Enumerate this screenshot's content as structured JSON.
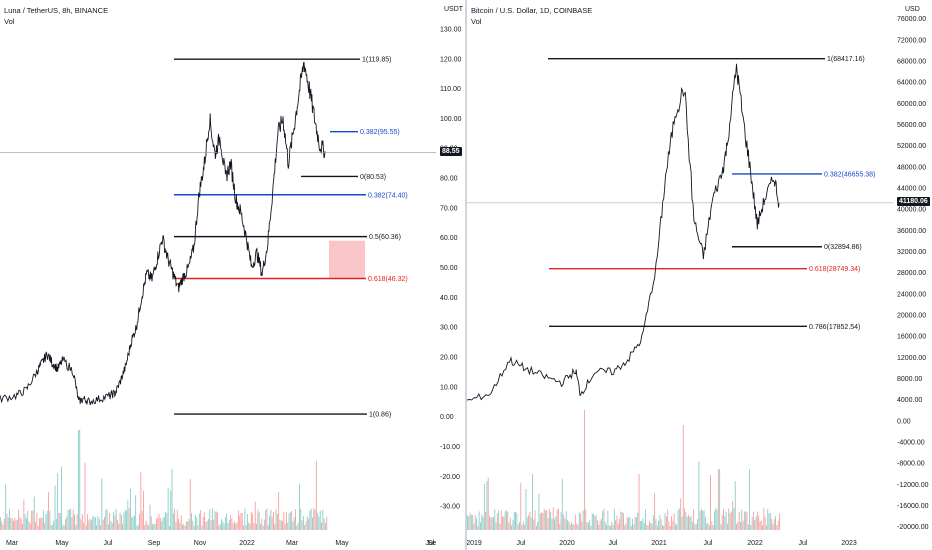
{
  "chart_data": [
    {
      "type": "line",
      "title": "Luna / TetherUS, 8h, BINANCE",
      "volume_label": "Vol",
      "y_unit": "USDT",
      "current_price": "88.55",
      "x_ticks": [
        "Mar",
        "May",
        "Jul",
        "Sep",
        "Nov",
        "2022",
        "Mar",
        "May",
        "Jul",
        "Se"
      ],
      "y_ticks": [
        "130.00",
        "120.00",
        "110.00",
        "100.00",
        "90.00",
        "80.00",
        "70.00",
        "60.00",
        "50.00",
        "40.00",
        "30.00",
        "20.00",
        "10.00",
        "0.00",
        "-10.00",
        "-20.00",
        "-30.00"
      ],
      "ylim": [
        -36,
        133
      ],
      "price_path": [
        [
          0,
          6.0
        ],
        [
          3,
          7.0
        ],
        [
          5,
          9.0
        ],
        [
          7,
          15.0
        ],
        [
          8,
          18.0
        ],
        [
          9,
          21.0
        ],
        [
          10,
          18.0
        ],
        [
          11,
          16.0
        ],
        [
          12,
          19.0
        ],
        [
          14,
          15.0
        ],
        [
          15,
          5.0
        ],
        [
          16,
          6.0
        ],
        [
          17,
          5.0
        ],
        [
          19,
          6.0
        ],
        [
          21,
          7.0
        ],
        [
          22,
          8.0
        ],
        [
          23,
          12.0
        ],
        [
          24,
          17.0
        ],
        [
          25,
          25.0
        ],
        [
          26,
          30.0
        ],
        [
          27,
          40.0
        ],
        [
          28,
          48.0
        ],
        [
          29,
          46.0
        ],
        [
          30,
          53.0
        ],
        [
          31,
          60.0
        ],
        [
          32,
          53.0
        ],
        [
          33,
          48.0
        ],
        [
          34,
          43.0
        ],
        [
          35,
          47.0
        ],
        [
          36,
          50.0
        ],
        [
          37,
          57.0
        ],
        [
          38,
          75.0
        ],
        [
          39,
          85.0
        ],
        [
          40,
          100.0
        ],
        [
          41,
          88.0
        ],
        [
          42,
          94.0
        ],
        [
          43,
          80.0
        ],
        [
          44,
          85.0
        ],
        [
          45,
          73.0
        ],
        [
          46,
          68.0
        ],
        [
          47,
          60.0
        ],
        [
          48,
          50.0
        ],
        [
          49,
          55.0
        ],
        [
          50,
          48.0
        ],
        [
          51,
          57.0
        ],
        [
          52,
          75.0
        ],
        [
          53,
          95.0
        ],
        [
          54,
          100.0
        ],
        [
          55,
          85.0
        ],
        [
          56,
          96.0
        ],
        [
          57,
          108.0
        ],
        [
          58,
          119.0
        ],
        [
          59,
          110.0
        ],
        [
          60,
          100.0
        ],
        [
          61,
          91.0
        ],
        [
          62,
          89.0
        ]
      ],
      "fib_levels": [
        {
          "label": "1(119.85)",
          "value": 119.85,
          "color": "#131722"
        },
        {
          "label": "0.382(95.55)",
          "value": 95.55,
          "color": "#1848cc"
        },
        {
          "label": "0(80.53)",
          "value": 80.53,
          "color": "#131722"
        },
        {
          "label": "0.382(74.40)",
          "value": 74.4,
          "color": "#1848cc"
        },
        {
          "label": "0.5(60.36)",
          "value": 60.36,
          "color": "#131722"
        },
        {
          "label": "0.618(46.32)",
          "value": 46.32,
          "color": "#e02424"
        },
        {
          "label": "1(0.86)",
          "value": 0.86,
          "color": "#131722"
        }
      ],
      "highlight_zone": {
        "from": 46.32,
        "to": 59.0,
        "color": "#f9c5c9"
      }
    },
    {
      "type": "line",
      "title": "Bitcoin / U.S. Dollar, 1D, COINBASE",
      "volume_label": "Vol",
      "y_unit": "USD",
      "current_price": "41180.06",
      "x_ticks": [
        "2019",
        "Jul",
        "2020",
        "Jul",
        "2021",
        "Jul",
        "2022",
        "Jul",
        "2023"
      ],
      "y_ticks": [
        "76000.00",
        "72000.00",
        "68000.00",
        "64000.00",
        "60000.00",
        "56000.00",
        "52000.00",
        "48000.00",
        "44000.00",
        "40000.00",
        "36000.00",
        "32000.00",
        "28000.00",
        "24000.00",
        "20000.00",
        "16000.00",
        "12000.00",
        "8000.00",
        "4000.00",
        "0.00",
        "-4000.00",
        "-8000.00",
        "-12000.00",
        "-16000.00",
        "-20000.00"
      ],
      "ylim": [
        -21000,
        78000
      ],
      "price_path": [
        [
          2019.0,
          3700
        ],
        [
          2019.25,
          5200
        ],
        [
          2019.45,
          11500
        ],
        [
          2019.6,
          10000
        ],
        [
          2019.8,
          8500
        ],
        [
          2020.0,
          7200
        ],
        [
          2020.15,
          9500
        ],
        [
          2020.2,
          5000
        ],
        [
          2020.35,
          9200
        ],
        [
          2020.55,
          9300
        ],
        [
          2020.7,
          11500
        ],
        [
          2020.85,
          15500
        ],
        [
          2021.0,
          29000
        ],
        [
          2021.1,
          46000
        ],
        [
          2021.2,
          58000
        ],
        [
          2021.3,
          63000
        ],
        [
          2021.4,
          38000
        ],
        [
          2021.5,
          31000
        ],
        [
          2021.6,
          42000
        ],
        [
          2021.7,
          47000
        ],
        [
          2021.75,
          52000
        ],
        [
          2021.85,
          67000
        ],
        [
          2021.92,
          57000
        ],
        [
          2022.0,
          47000
        ],
        [
          2022.07,
          37000
        ],
        [
          2022.15,
          42000
        ],
        [
          2022.25,
          46000
        ],
        [
          2022.3,
          41180
        ]
      ],
      "fib_levels": [
        {
          "label": "1(68417.16)",
          "value": 68417.16,
          "color": "#131722"
        },
        {
          "label": "0.382(46655.38)",
          "value": 46655.38,
          "color": "#1848cc"
        },
        {
          "label": "0(32894.86)",
          "value": 32894.86,
          "color": "#131722"
        },
        {
          "label": "0.618(28749.34)",
          "value": 28749.34,
          "color": "#e02424"
        },
        {
          "label": "0.786(17852.54)",
          "value": 17852.54,
          "color": "#131722"
        }
      ]
    }
  ]
}
